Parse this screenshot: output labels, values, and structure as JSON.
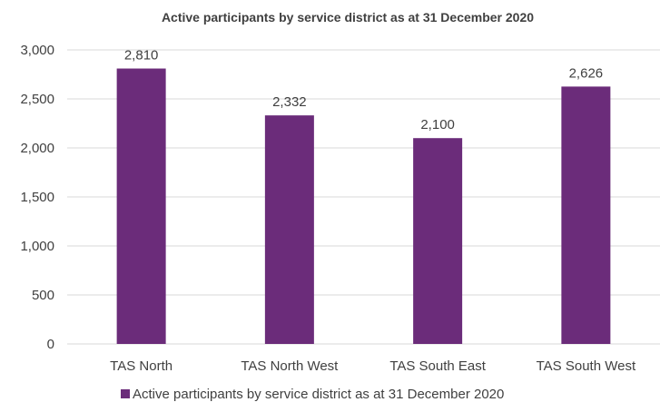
{
  "chart_data": {
    "type": "bar",
    "title": "Active participants by service district as at 31 December 2020",
    "categories": [
      "TAS North",
      "TAS North West",
      "TAS South East",
      "TAS South West"
    ],
    "series": [
      {
        "name": "Active participants by service district as at 31 December 2020",
        "values": [
          2810,
          2332,
          2100,
          2626
        ],
        "data_labels": [
          "2,810",
          "2,332",
          "2,100",
          "2,626"
        ],
        "color": "#6b2c7a"
      }
    ],
    "y_ticks": [
      "0",
      "500",
      "1,000",
      "1,500",
      "2,000",
      "2,500",
      "3,000"
    ],
    "ylim": [
      0,
      3000
    ],
    "grid": true,
    "legend_position": "bottom",
    "colors": {
      "bar": "#6b2c7a",
      "text": "#404040",
      "grid": "#d9d9d9"
    }
  }
}
